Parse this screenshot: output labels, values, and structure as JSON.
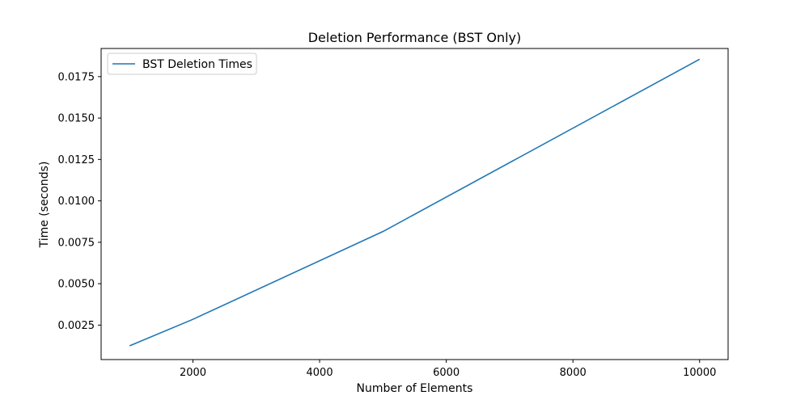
{
  "chart_data": {
    "type": "line",
    "title": "Deletion Performance (BST Only)",
    "xlabel": "Number of Elements",
    "ylabel": "Time (seconds)",
    "xlim": [
      550,
      10450
    ],
    "ylim": [
      0.00042,
      0.0192
    ],
    "x_ticks": [
      2000,
      4000,
      6000,
      8000,
      10000
    ],
    "x_tick_labels": [
      "2000",
      "4000",
      "6000",
      "8000",
      "10000"
    ],
    "y_ticks": [
      0.0025,
      0.005,
      0.0075,
      0.01,
      0.0125,
      0.015,
      0.0175
    ],
    "y_tick_labels": [
      "0.0025",
      "0.0050",
      "0.0075",
      "0.0100",
      "0.0125",
      "0.0150",
      "0.0175"
    ],
    "grid": false,
    "legend_position": "top-left",
    "series": [
      {
        "name": "BST Deletion Times",
        "color": "#1f77b4",
        "x": [
          1000,
          2000,
          5000,
          10000
        ],
        "y": [
          0.00125,
          0.00285,
          0.00815,
          0.01855
        ]
      }
    ]
  }
}
